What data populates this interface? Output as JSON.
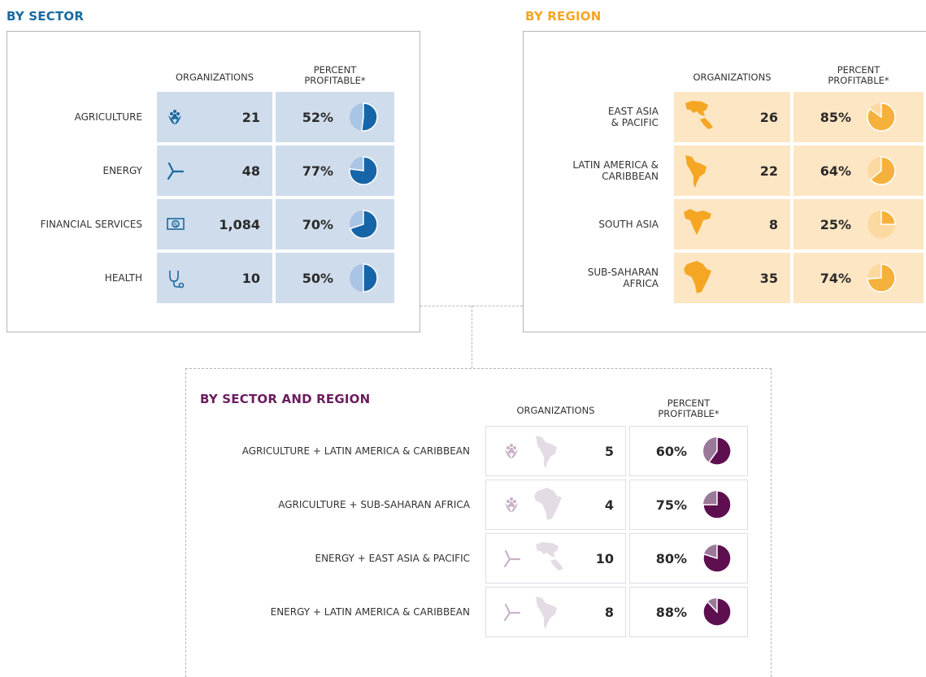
{
  "sector": {
    "title": "BY SECTOR",
    "columns": [
      "ORGANIZATIONS",
      "PERCENT\nPROFITABLE*"
    ],
    "rows": [
      {
        "label": "AGRICULTURE",
        "organizations": "21",
        "percent": 52,
        "percent_label": "52%"
      },
      {
        "label": "ENERGY",
        "organizations": "48",
        "percent": 77,
        "percent_label": "77%"
      },
      {
        "label": "FINANCIAL SERVICES",
        "organizations": "1,084",
        "percent": 70,
        "percent_label": "70%"
      },
      {
        "label": "HEALTH",
        "organizations": "10",
        "percent": 50,
        "percent_label": "50%"
      }
    ]
  },
  "region": {
    "title": "BY REGION",
    "columns": [
      "ORGANIZATIONS",
      "PERCENT\nPROFITABLE*"
    ],
    "rows": [
      {
        "label": "EAST ASIA\n& PACIFIC",
        "organizations": "26",
        "percent": 85,
        "percent_label": "85%"
      },
      {
        "label": "LATIN AMERICA &\nCARIBBEAN",
        "organizations": "22",
        "percent": 64,
        "percent_label": "64%"
      },
      {
        "label": "SOUTH ASIA",
        "organizations": "8",
        "percent": 25,
        "percent_label": "25%"
      },
      {
        "label": "SUB-SAHARAN\nAFRICA",
        "organizations": "35",
        "percent": 74,
        "percent_label": "74%"
      }
    ]
  },
  "combined": {
    "title": "BY SECTOR AND REGION",
    "columns": [
      "ORGANIZATIONS",
      "PERCENT\nPROFITABLE*"
    ],
    "rows": [
      {
        "label": "AGRICULTURE + LATIN AMERICA & CARIBBEAN",
        "organizations": "5",
        "percent": 60,
        "percent_label": "60%"
      },
      {
        "label": "AGRICULTURE + SUB-SAHARAN AFRICA",
        "organizations": "4",
        "percent": 75,
        "percent_label": "75%"
      },
      {
        "label": "ENERGY + EAST ASIA & PACIFIC",
        "organizations": "10",
        "percent": 80,
        "percent_label": "80%"
      },
      {
        "label": "ENERGY + LATIN AMERICA & CARIBBEAN",
        "organizations": "8",
        "percent": 88,
        "percent_label": "88%"
      }
    ]
  }
}
